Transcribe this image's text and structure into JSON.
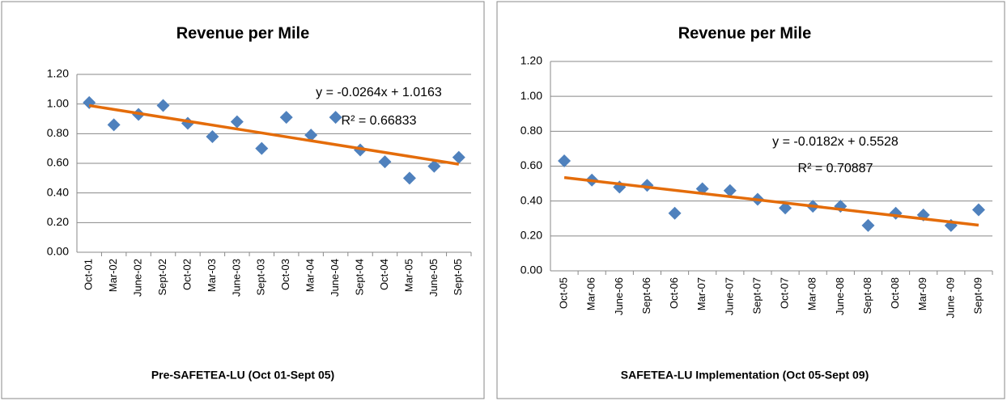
{
  "chart_data": [
    {
      "type": "scatter",
      "title": "Revenue per Mile",
      "x_label": "Pre-SAFETEA-LU  (Oct 01-Sept 05)",
      "categories": [
        "Oct-01",
        "Mar-02",
        "June-02",
        "Sept-02",
        "Oct-02",
        "Mar-03",
        "June-03",
        "Sept-03",
        "Oct-03",
        "Mar-04",
        "June-04",
        "Sept-04",
        "Oct-04",
        "Mar-05",
        "June-05",
        "Sept-05"
      ],
      "values": [
        1.01,
        0.86,
        0.93,
        0.99,
        0.87,
        0.78,
        0.88,
        0.7,
        0.91,
        0.79,
        0.91,
        0.69,
        0.61,
        0.5,
        0.58,
        0.64
      ],
      "color": "#4f81bd",
      "trend_color": "#e46c0a",
      "trendline": {
        "slope": -0.0264,
        "intercept": 1.0163,
        "equation": "y = -0.0264x + 1.0163",
        "r2": "R² = 0.66833"
      },
      "ylim": [
        0,
        1.2
      ],
      "yticks": [
        {
          "value": 0,
          "label": "0.00"
        },
        {
          "value": 0.2,
          "label": "0.20"
        },
        {
          "value": 0.4,
          "label": "0.40"
        },
        {
          "value": 0.6,
          "label": "0.60"
        },
        {
          "value": 0.8,
          "label": "0.80"
        },
        {
          "value": 1,
          "label": "1.00"
        },
        {
          "value": 1.2,
          "label": "1.20"
        }
      ],
      "grid": true
    },
    {
      "type": "scatter",
      "title": "Revenue per Mile",
      "x_label": "SAFETEA-LU  Implementation  (Oct 05-Sept 09)",
      "categories": [
        "Oct-05",
        "Mar-06",
        "June-06",
        "Sept-06",
        "Oct-06",
        "Mar-07",
        "June-07",
        "Sept-07",
        "Oct-07",
        "Mar-08",
        "June-08",
        "Sept-08",
        "Oct-08",
        "Mar-09",
        "June -09",
        "Sept-09"
      ],
      "values": [
        0.63,
        0.52,
        0.48,
        0.49,
        0.33,
        0.47,
        0.46,
        0.41,
        0.36,
        0.37,
        0.37,
        0.26,
        0.33,
        0.32,
        0.26,
        0.35
      ],
      "color": "#4f81bd",
      "trend_color": "#e46c0a",
      "trendline": {
        "slope": -0.0182,
        "intercept": 0.5528,
        "equation": "y = -0.0182x + 0.5528",
        "r2": "R² = 0.70887"
      },
      "ylim": [
        0,
        1.2
      ],
      "yticks": [
        {
          "value": 0,
          "label": "0.00"
        },
        {
          "value": 0.2,
          "label": "0.20"
        },
        {
          "value": 0.4,
          "label": "0.40"
        },
        {
          "value": 0.6,
          "label": "0.60"
        },
        {
          "value": 0.8,
          "label": "0.80"
        },
        {
          "value": 1,
          "label": "1.00"
        },
        {
          "value": 1.2,
          "label": "1.20"
        }
      ],
      "grid": true
    }
  ]
}
